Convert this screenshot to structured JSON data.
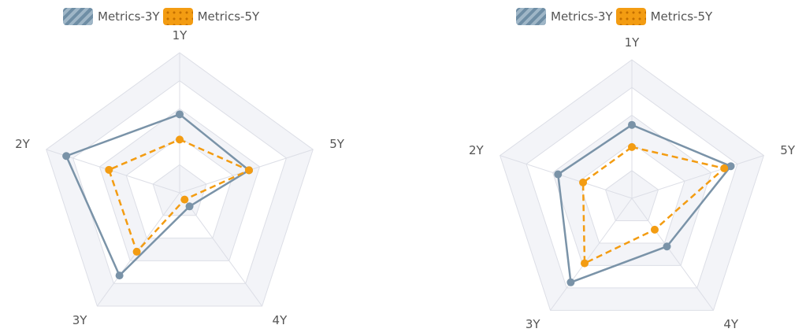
{
  "chart_data": [
    {
      "type": "radar",
      "indicators": [
        "1Y",
        "5Y",
        "4Y",
        "3Y",
        "2Y"
      ],
      "max": 1,
      "series": [
        {
          "name": "Metrics-3Y",
          "values": [
            0.56,
            0.52,
            0.12,
            0.73,
            0.85
          ],
          "color": "#7a93a8",
          "line": "solid"
        },
        {
          "name": "Metrics-5Y",
          "values": [
            0.38,
            0.52,
            0.06,
            0.52,
            0.53
          ],
          "color": "#f39c12",
          "line": "dashed"
        }
      ],
      "legend": "top-left",
      "grid": true
    },
    {
      "type": "radar",
      "indicators": [
        "1Y",
        "5Y",
        "4Y",
        "3Y",
        "2Y"
      ],
      "max": 1,
      "series": [
        {
          "name": "Metrics-3Y",
          "values": [
            0.53,
            0.75,
            0.43,
            0.75,
            0.56
          ],
          "color": "#7a93a8",
          "line": "solid"
        },
        {
          "name": "Metrics-5Y",
          "values": [
            0.37,
            0.7,
            0.28,
            0.58,
            0.37
          ],
          "color": "#f39c12",
          "line": "dashed"
        }
      ],
      "legend": "top-left",
      "grid": true
    }
  ],
  "legend_labels": [
    "Metrics-3Y",
    "Metrics-5Y"
  ]
}
